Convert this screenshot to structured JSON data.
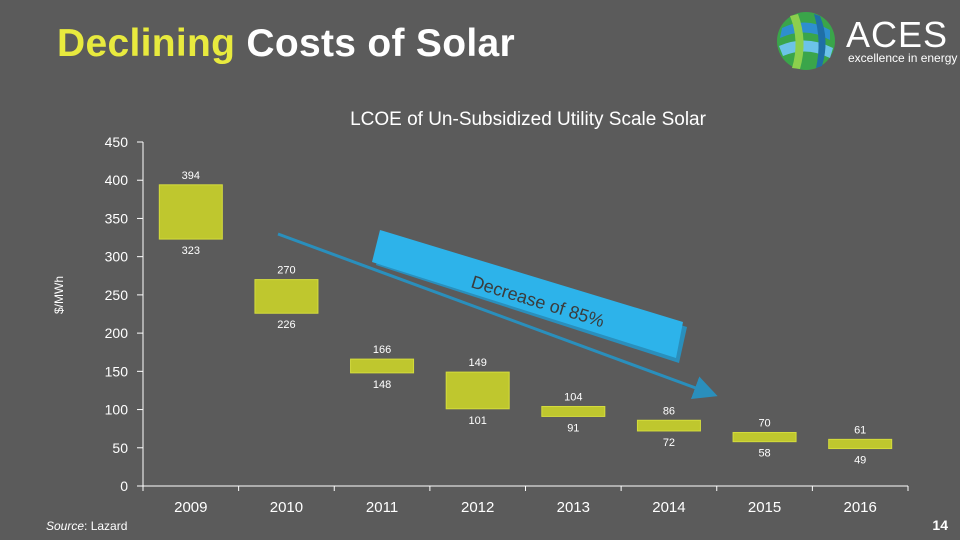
{
  "slide": {
    "title_highlight": "Declining",
    "title_rest": " Costs of Solar",
    "source_label": "Source",
    "source_value": ": Lazard",
    "page_number": "14"
  },
  "logo": {
    "brand": "ACES",
    "tagline": "excellence in energy"
  },
  "colors": {
    "background": "#5b5b5b",
    "bar": "#bfc72e",
    "bar_border": "#d4dc3c",
    "arrow": "#2db3ea",
    "arrow_shadow": "#2a8fbc",
    "title_highlight": "#e8ea3e"
  },
  "chart_data": {
    "type": "floating-bar",
    "title": "LCOE of Un-Subsidized Utility Scale Solar",
    "ylabel": "$/MWh",
    "xlabel": "",
    "ylim": [
      0,
      450
    ],
    "yticks": [
      0,
      50,
      100,
      150,
      200,
      250,
      300,
      350,
      400,
      450
    ],
    "categories": [
      "2009",
      "2010",
      "2011",
      "2012",
      "2013",
      "2014",
      "2015",
      "2016"
    ],
    "high": [
      394,
      270,
      166,
      149,
      104,
      86,
      70,
      61
    ],
    "low": [
      323,
      226,
      148,
      101,
      91,
      72,
      58,
      49
    ],
    "legend": "none",
    "grid": false,
    "annotation": {
      "text": "Decrease of 85%",
      "shape": "arrow"
    }
  }
}
